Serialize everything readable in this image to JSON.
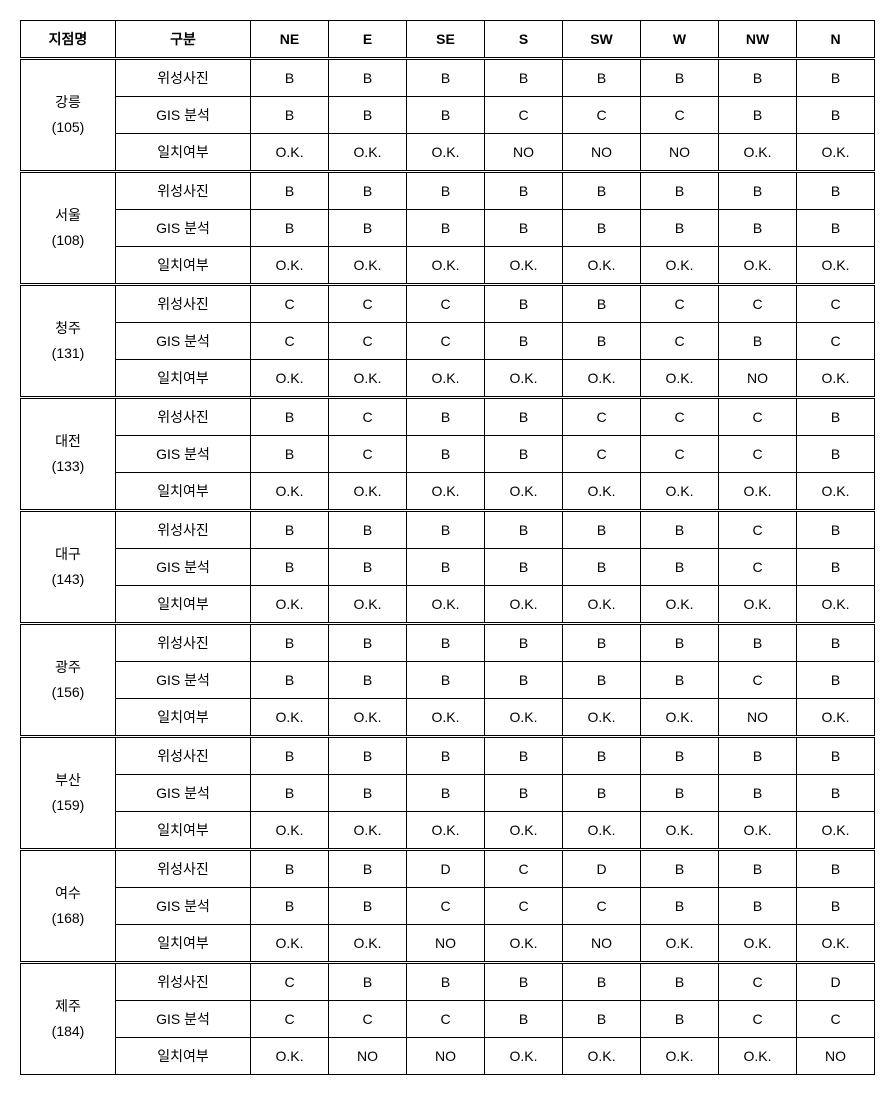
{
  "headers": {
    "station": "지점명",
    "category": "구분",
    "directions": [
      "NE",
      "E",
      "SE",
      "S",
      "SW",
      "W",
      "NW",
      "N"
    ]
  },
  "categories": [
    "위성사진",
    "GIS 분석",
    "일치여부"
  ],
  "stations": [
    {
      "name": "강릉",
      "code": "(105)",
      "rows": [
        [
          "B",
          "B",
          "B",
          "B",
          "B",
          "B",
          "B",
          "B"
        ],
        [
          "B",
          "B",
          "B",
          "C",
          "C",
          "C",
          "B",
          "B"
        ],
        [
          "O.K.",
          "O.K.",
          "O.K.",
          "NO",
          "NO",
          "NO",
          "O.K.",
          "O.K."
        ]
      ]
    },
    {
      "name": "서울",
      "code": "(108)",
      "rows": [
        [
          "B",
          "B",
          "B",
          "B",
          "B",
          "B",
          "B",
          "B"
        ],
        [
          "B",
          "B",
          "B",
          "B",
          "B",
          "B",
          "B",
          "B"
        ],
        [
          "O.K.",
          "O.K.",
          "O.K.",
          "O.K.",
          "O.K.",
          "O.K.",
          "O.K.",
          "O.K."
        ]
      ]
    },
    {
      "name": "청주",
      "code": "(131)",
      "rows": [
        [
          "C",
          "C",
          "C",
          "B",
          "B",
          "C",
          "C",
          "C"
        ],
        [
          "C",
          "C",
          "C",
          "B",
          "B",
          "C",
          "B",
          "C"
        ],
        [
          "O.K.",
          "O.K.",
          "O.K.",
          "O.K.",
          "O.K.",
          "O.K.",
          "NO",
          "O.K."
        ]
      ]
    },
    {
      "name": "대전",
      "code": "(133)",
      "rows": [
        [
          "B",
          "C",
          "B",
          "B",
          "C",
          "C",
          "C",
          "B"
        ],
        [
          "B",
          "C",
          "B",
          "B",
          "C",
          "C",
          "C",
          "B"
        ],
        [
          "O.K.",
          "O.K.",
          "O.K.",
          "O.K.",
          "O.K.",
          "O.K.",
          "O.K.",
          "O.K."
        ]
      ]
    },
    {
      "name": "대구",
      "code": "(143)",
      "rows": [
        [
          "B",
          "B",
          "B",
          "B",
          "B",
          "B",
          "C",
          "B"
        ],
        [
          "B",
          "B",
          "B",
          "B",
          "B",
          "B",
          "C",
          "B"
        ],
        [
          "O.K.",
          "O.K.",
          "O.K.",
          "O.K.",
          "O.K.",
          "O.K.",
          "O.K.",
          "O.K."
        ]
      ]
    },
    {
      "name": "광주",
      "code": "(156)",
      "rows": [
        [
          "B",
          "B",
          "B",
          "B",
          "B",
          "B",
          "B",
          "B"
        ],
        [
          "B",
          "B",
          "B",
          "B",
          "B",
          "B",
          "C",
          "B"
        ],
        [
          "O.K.",
          "O.K.",
          "O.K.",
          "O.K.",
          "O.K.",
          "O.K.",
          "NO",
          "O.K."
        ]
      ]
    },
    {
      "name": "부산",
      "code": "(159)",
      "rows": [
        [
          "B",
          "B",
          "B",
          "B",
          "B",
          "B",
          "B",
          "B"
        ],
        [
          "B",
          "B",
          "B",
          "B",
          "B",
          "B",
          "B",
          "B"
        ],
        [
          "O.K.",
          "O.K.",
          "O.K.",
          "O.K.",
          "O.K.",
          "O.K.",
          "O.K.",
          "O.K."
        ]
      ]
    },
    {
      "name": "여수",
      "code": "(168)",
      "rows": [
        [
          "B",
          "B",
          "D",
          "C",
          "D",
          "B",
          "B",
          "B"
        ],
        [
          "B",
          "B",
          "C",
          "C",
          "C",
          "B",
          "B",
          "B"
        ],
        [
          "O.K.",
          "O.K.",
          "NO",
          "O.K.",
          "NO",
          "O.K.",
          "O.K.",
          "O.K."
        ]
      ]
    },
    {
      "name": "제주",
      "code": "(184)",
      "rows": [
        [
          "C",
          "B",
          "B",
          "B",
          "B",
          "B",
          "C",
          "D"
        ],
        [
          "C",
          "C",
          "C",
          "B",
          "B",
          "B",
          "C",
          "C"
        ],
        [
          "O.K.",
          "NO",
          "NO",
          "O.K.",
          "O.K.",
          "O.K.",
          "O.K.",
          "NO"
        ]
      ]
    }
  ]
}
